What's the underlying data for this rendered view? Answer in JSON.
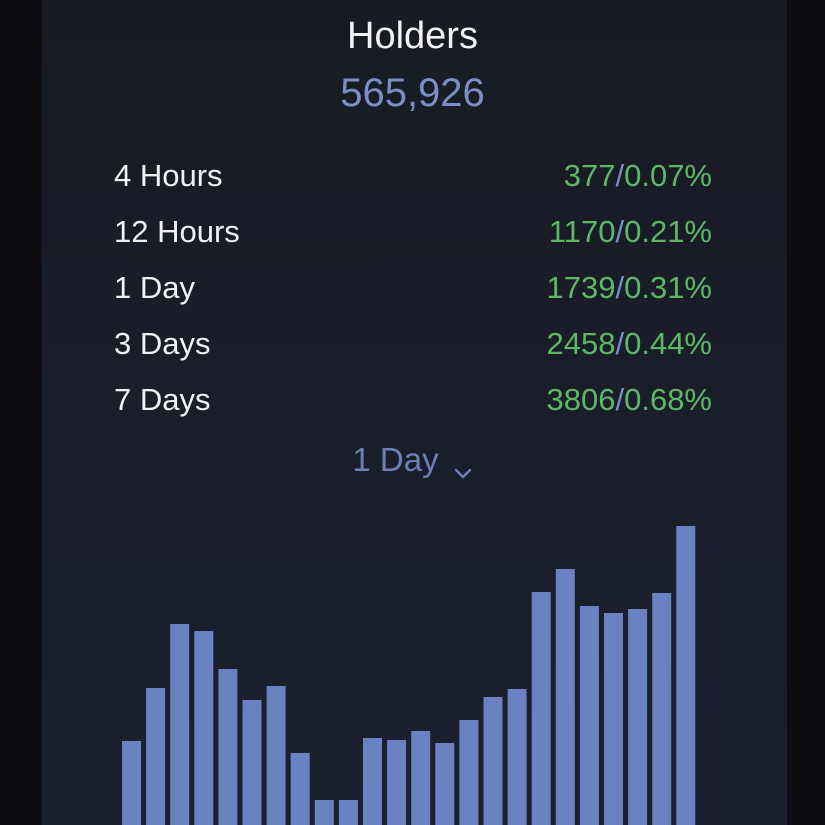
{
  "header": {
    "title": "Holders",
    "total": "565,926"
  },
  "stats": [
    {
      "label": "4 Hours",
      "count": "377",
      "sep": "/",
      "percent": "0.07%"
    },
    {
      "label": "12 Hours",
      "count": "1170",
      "sep": "/",
      "percent": "0.21%"
    },
    {
      "label": "1 Day",
      "count": "1739",
      "sep": "/",
      "percent": "0.31%"
    },
    {
      "label": "3 Days",
      "count": "2458",
      "sep": "/",
      "percent": "0.44%"
    },
    {
      "label": "7 Days",
      "count": "3806",
      "sep": "/",
      "percent": "0.68%"
    }
  ],
  "period_select": {
    "selected": "1 Day",
    "icon": "chevron-down-icon"
  },
  "colors": {
    "bar": "#6a82c2",
    "accent": "#7b8fc7",
    "positive": "#5bb865"
  },
  "chart_data": {
    "type": "bar",
    "values": [
      84,
      137,
      201,
      194,
      156,
      125,
      139,
      72,
      25,
      25,
      87,
      85,
      94,
      82,
      105,
      128,
      136,
      233,
      256,
      219,
      212,
      216,
      232,
      299
    ]
  }
}
